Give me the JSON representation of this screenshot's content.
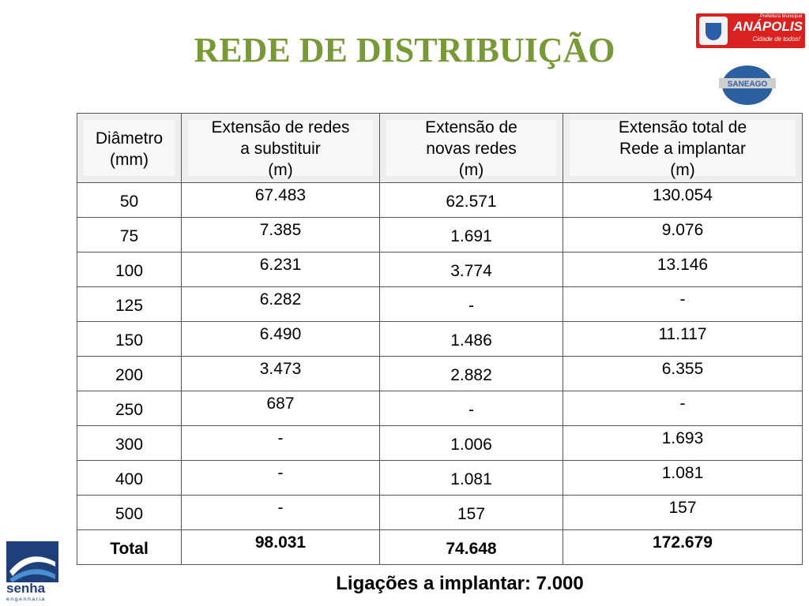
{
  "header": {
    "title": "REDE DE DISTRIBUIÇÃO"
  },
  "logos": {
    "prefeitura": "Prefeitura Municipal",
    "anapolis": "ANÁPOLIS",
    "slogan": "Cidade de todos!",
    "saneago": "SANEAGO",
    "senha": "senha",
    "engenharia": "e.n.g.e.n.h.a.r.i.a"
  },
  "table": {
    "columns": [
      [
        "Diâmetro",
        "(mm)"
      ],
      [
        "Extensão de redes",
        "a substituir",
        "(m)"
      ],
      [
        "Extensão de",
        "novas redes",
        "(m)"
      ],
      [
        "Extensão  total de",
        "Rede a implantar",
        "(m)"
      ]
    ],
    "rows": [
      [
        "50",
        "67.483",
        "62.571",
        "130.054"
      ],
      [
        "75",
        "7.385",
        "1.691",
        "9.076"
      ],
      [
        "100",
        "6.231",
        "3.774",
        "13.146"
      ],
      [
        "125",
        "6.282",
        "-",
        "-"
      ],
      [
        "150",
        "6.490",
        "1.486",
        "11.117"
      ],
      [
        "200",
        "3.473",
        "2.882",
        "6.355"
      ],
      [
        "250",
        "687",
        "-",
        "-"
      ],
      [
        "300",
        "-",
        "1.006",
        "1.693"
      ],
      [
        "400",
        "-",
        "1.081",
        "1.081"
      ],
      [
        "500",
        "-",
        "157",
        "157"
      ]
    ],
    "total": [
      "Total",
      "98.031",
      "74.648",
      "172.679"
    ]
  },
  "footer": "Ligações a implantar: 7.000"
}
